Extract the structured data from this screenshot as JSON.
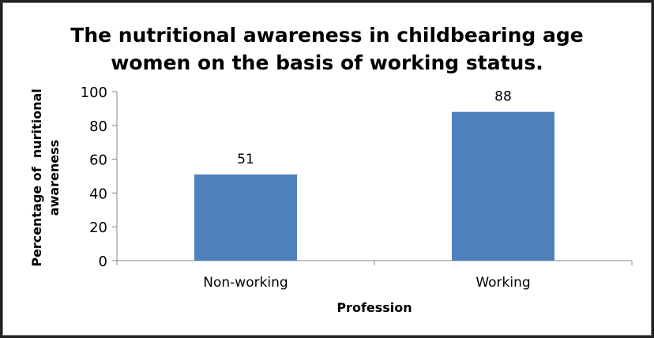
{
  "chart_data": {
    "type": "bar",
    "title": [
      "The nutritional awareness in childbearing age",
      "women on the basis of working status."
    ],
    "xlabel": "Profession",
    "ylabel": [
      "Percentage of  nuritional",
      "awareness"
    ],
    "categories": [
      "Non-working",
      "Working"
    ],
    "values": [
      51,
      88
    ],
    "data_labels": [
      "51",
      "88"
    ],
    "ylim": [
      0,
      100
    ],
    "yticks": [
      "0",
      "20",
      "40",
      "60",
      "80",
      "100"
    ],
    "grid": false,
    "legend": "none",
    "bar_color": "#4F81BD",
    "axis_color": "#868686"
  }
}
